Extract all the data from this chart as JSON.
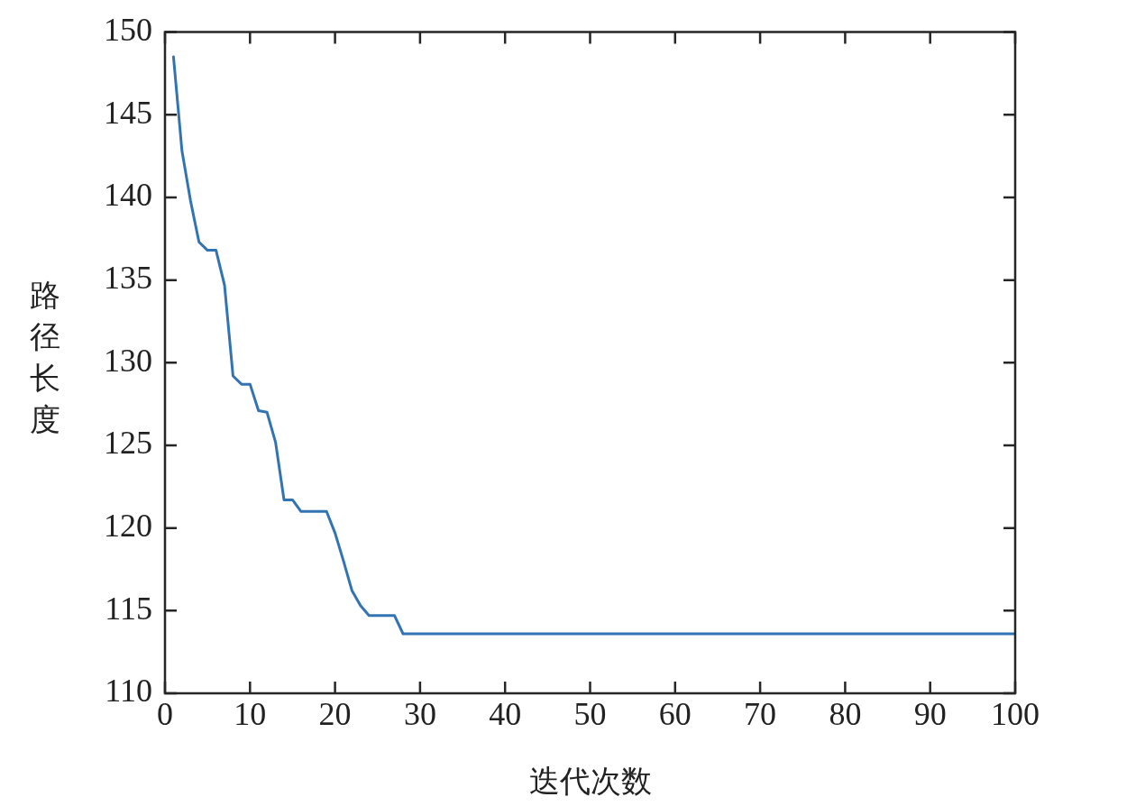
{
  "chart_data": {
    "type": "line",
    "xlabel": "迭代次数",
    "ylabel": "路径长度",
    "x": [
      1,
      2,
      3,
      4,
      5,
      6,
      7,
      8,
      9,
      10,
      11,
      12,
      13,
      14,
      15,
      16,
      17,
      18,
      19,
      20,
      21,
      22,
      23,
      24,
      25,
      26,
      27,
      28,
      29,
      30,
      31,
      32,
      33,
      34,
      35,
      36,
      37,
      38,
      39,
      40,
      41,
      42,
      43,
      44,
      45,
      46,
      47,
      48,
      49,
      50,
      51,
      52,
      53,
      54,
      55,
      56,
      57,
      58,
      59,
      60,
      61,
      62,
      63,
      64,
      65,
      66,
      67,
      68,
      69,
      70,
      71,
      72,
      73,
      74,
      75,
      76,
      77,
      78,
      79,
      80,
      81,
      82,
      83,
      84,
      85,
      86,
      87,
      88,
      89,
      90,
      91,
      92,
      93,
      94,
      95,
      96,
      97,
      98,
      99,
      100
    ],
    "series": [
      {
        "color": "#3274b3",
        "values": [
          148.5,
          142.8,
          139.8,
          137.3,
          136.8,
          136.8,
          134.7,
          129.2,
          128.7,
          128.7,
          127.1,
          127.0,
          125.2,
          121.7,
          121.7,
          121.0,
          121.0,
          121.0,
          121.0,
          119.7,
          118.0,
          116.2,
          115.3,
          114.7,
          114.7,
          114.7,
          114.7,
          113.6,
          113.6,
          113.6,
          113.6,
          113.6,
          113.6,
          113.6,
          113.6,
          113.6,
          113.6,
          113.6,
          113.6,
          113.6,
          113.6,
          113.6,
          113.6,
          113.6,
          113.6,
          113.6,
          113.6,
          113.6,
          113.6,
          113.6,
          113.6,
          113.6,
          113.6,
          113.6,
          113.6,
          113.6,
          113.6,
          113.6,
          113.6,
          113.6,
          113.6,
          113.6,
          113.6,
          113.6,
          113.6,
          113.6,
          113.6,
          113.6,
          113.6,
          113.6,
          113.6,
          113.6,
          113.6,
          113.6,
          113.6,
          113.6,
          113.6,
          113.6,
          113.6,
          113.6,
          113.6,
          113.6,
          113.6,
          113.6,
          113.6,
          113.6,
          113.6,
          113.6,
          113.6,
          113.6,
          113.6,
          113.6,
          113.6,
          113.6,
          113.6,
          113.6,
          113.6,
          113.6,
          113.6,
          113.6
        ]
      }
    ],
    "xlim": [
      0,
      100
    ],
    "xticks": [
      0,
      10,
      20,
      30,
      40,
      50,
      60,
      70,
      80,
      90,
      100
    ],
    "ylim": [
      110,
      150
    ],
    "yticks": [
      110,
      115,
      120,
      125,
      130,
      135,
      140,
      145,
      150
    ],
    "grid": false,
    "legend": false,
    "marker": "none",
    "line_style": "solid"
  }
}
